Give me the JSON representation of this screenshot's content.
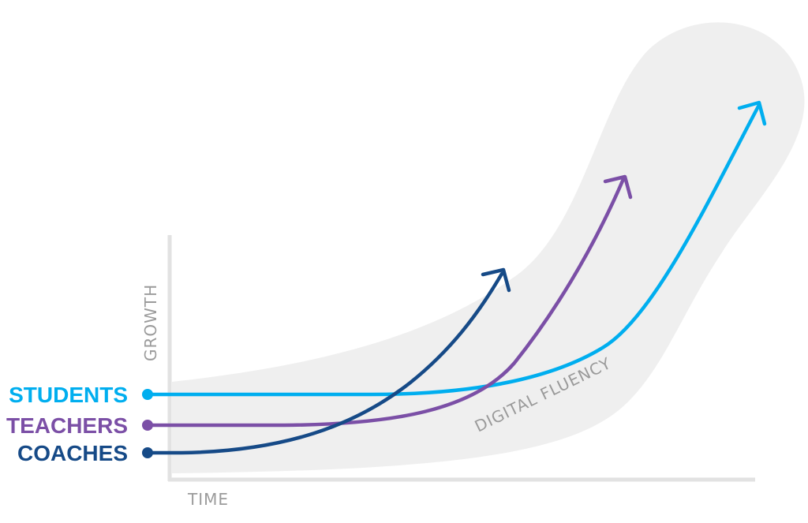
{
  "chart_data": {
    "type": "line",
    "xlabel": "TIME",
    "ylabel": "GROWTH",
    "band": {
      "label": "DIGITAL FLUENCY",
      "color": "#efefef"
    },
    "axis_color": "#e2e2e2",
    "series": [
      {
        "name": "STUDENTS",
        "color": "#00aeef"
      },
      {
        "name": "TEACHERS",
        "color": "#7b4fa6"
      },
      {
        "name": "COACHES",
        "color": "#164a87"
      }
    ]
  }
}
